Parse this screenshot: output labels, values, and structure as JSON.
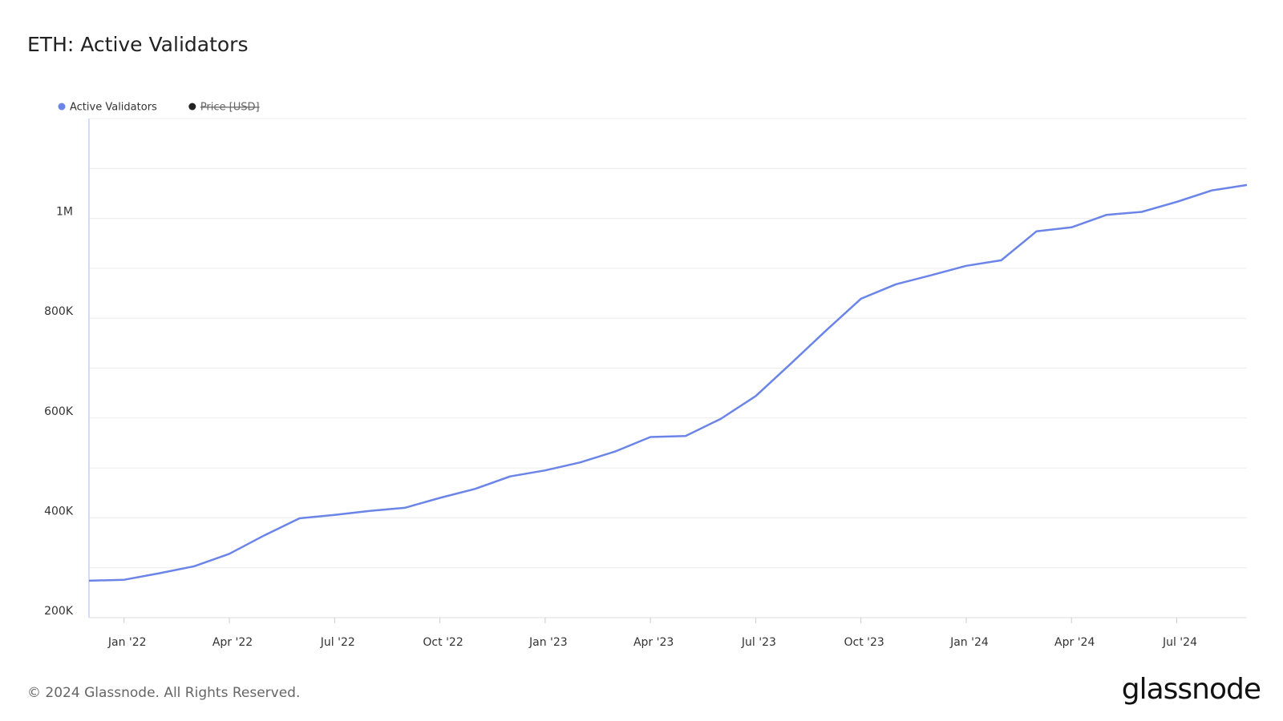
{
  "chart_data": {
    "type": "line",
    "title": "ETH: Active Validators",
    "x": [
      "2021-12",
      "2022-01",
      "2022-02",
      "2022-03",
      "2022-04",
      "2022-05",
      "2022-06",
      "2022-07",
      "2022-08",
      "2022-09",
      "2022-10",
      "2022-11",
      "2022-12",
      "2023-01",
      "2023-02",
      "2023-03",
      "2023-04",
      "2023-05",
      "2023-06",
      "2023-07",
      "2023-08",
      "2023-09",
      "2023-10",
      "2023-11",
      "2023-12",
      "2024-01",
      "2024-02",
      "2024-03",
      "2024-04",
      "2024-05",
      "2024-06",
      "2024-07",
      "2024-08",
      "2024-09"
    ],
    "series": [
      {
        "name": "Active Validators",
        "color": "#6b84e8",
        "values": [
          274000,
          276000,
          289000,
          303000,
          328000,
          365000,
          399000,
          406000,
          414000,
          420000,
          440000,
          458000,
          483000,
          495000,
          511000,
          533000,
          562000,
          564000,
          598000,
          644000,
          709000,
          775000,
          839000,
          868000,
          886000,
          905000,
          916000,
          974000,
          982000,
          1007000,
          1013000,
          1033000,
          1056000,
          1067000
        ]
      }
    ],
    "legend_extra": [
      {
        "name": "Price [USD]",
        "color": "#222222"
      }
    ],
    "xlim": [
      "2021-12",
      "2024-09"
    ],
    "xticks": [
      {
        "value": "2022-01",
        "label": "Jan '22"
      },
      {
        "value": "2022-04",
        "label": "Apr '22"
      },
      {
        "value": "2022-07",
        "label": "Jul '22"
      },
      {
        "value": "2022-10",
        "label": "Oct '22"
      },
      {
        "value": "2023-01",
        "label": "Jan '23"
      },
      {
        "value": "2023-04",
        "label": "Apr '23"
      },
      {
        "value": "2023-07",
        "label": "Jul '23"
      },
      {
        "value": "2023-10",
        "label": "Oct '23"
      },
      {
        "value": "2024-01",
        "label": "Jan '24"
      },
      {
        "value": "2024-04",
        "label": "Apr '24"
      },
      {
        "value": "2024-07",
        "label": "Jul '24"
      }
    ],
    "ylim": [
      200000,
      1200000
    ],
    "yticks": [
      {
        "value": 200000,
        "label": "200K"
      },
      {
        "value": 300000,
        "label": null
      },
      {
        "value": 400000,
        "label": "400K"
      },
      {
        "value": 500000,
        "label": null
      },
      {
        "value": 600000,
        "label": "600K"
      },
      {
        "value": 700000,
        "label": null
      },
      {
        "value": 800000,
        "label": "800K"
      },
      {
        "value": 900000,
        "label": null
      },
      {
        "value": 1000000,
        "label": "1M"
      },
      {
        "value": 1100000,
        "label": null
      },
      {
        "value": 1200000,
        "label": null
      }
    ],
    "grid": true
  },
  "footer": "© 2024 Glassnode. All Rights Reserved.",
  "brand": "glassnode"
}
